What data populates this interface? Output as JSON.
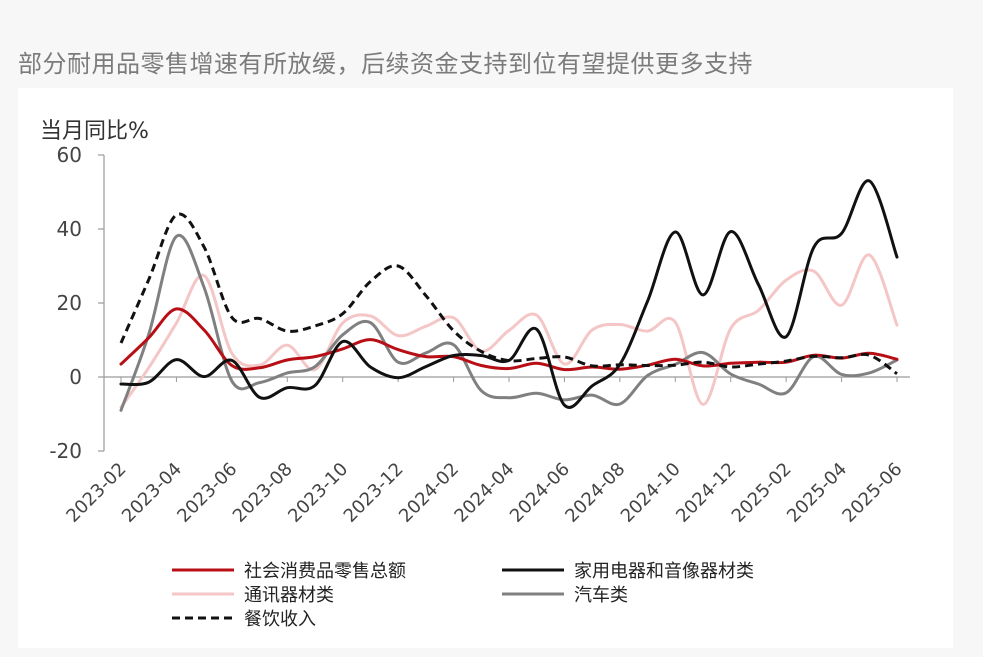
{
  "header": {
    "title": "部分耐用品零售增速有所放缓，后续资金支持到位有望提供更多支持"
  },
  "chart_data": {
    "type": "line",
    "title": "部分耐用品零售增速有所放缓，后续资金支持到位有望提供更多支持",
    "ylabel": "当月同比%",
    "xlabel": "",
    "ylim": [
      -20,
      60
    ],
    "yticks": [
      -20,
      0,
      20,
      40,
      60
    ],
    "x": [
      "2023-02",
      "2023-03",
      "2023-04",
      "2023-05",
      "2023-06",
      "2023-07",
      "2023-08",
      "2023-09",
      "2023-10",
      "2023-11",
      "2023-12",
      "2024-01",
      "2024-02",
      "2024-03",
      "2024-04",
      "2024-05",
      "2024-06",
      "2024-07",
      "2024-08",
      "2024-09",
      "2024-10",
      "2024-11",
      "2024-12",
      "2025-01",
      "2025-02",
      "2025-03",
      "2025-04",
      "2025-05",
      "2025-06"
    ],
    "xticks": [
      "2023-02",
      "2023-04",
      "2023-06",
      "2023-08",
      "2023-10",
      "2023-12",
      "2024-02",
      "2024-04",
      "2024-06",
      "2024-08",
      "2024-10",
      "2024-12",
      "2025-02",
      "2025-04",
      "2025-06"
    ],
    "legend_position": "bottom",
    "grid": false,
    "series": [
      {
        "name": "社会消费品零售总额",
        "color": "#b80f16",
        "dash": "solid",
        "width": 3,
        "values": [
          3.5,
          10.6,
          18.4,
          12.7,
          3.1,
          2.5,
          4.6,
          5.5,
          7.6,
          10.1,
          7.4,
          5.5,
          5.5,
          3.1,
          2.3,
          3.7,
          2.0,
          2.7,
          2.1,
          3.2,
          4.8,
          3.0,
          3.7,
          4.0,
          4.0,
          5.9,
          5.1,
          6.4,
          4.8
        ]
      },
      {
        "name": "家用电器和音像器材类",
        "color": "#111111",
        "dash": "solid",
        "width": 3,
        "values": [
          -1.9,
          -1.4,
          4.7,
          0.1,
          4.5,
          -5.5,
          -2.9,
          -2.3,
          9.6,
          2.7,
          -0.2,
          2.8,
          5.8,
          5.8,
          4.5,
          12.9,
          -7.6,
          -2.4,
          3.4,
          20.5,
          39.2,
          22.2,
          39.3,
          25.0,
          10.9,
          35.1,
          38.8,
          53.0,
          32.4
        ]
      },
      {
        "name": "通讯器材类",
        "color": "#f4c6c6",
        "dash": "solid",
        "width": 3,
        "values": [
          -8.2,
          2.5,
          14.6,
          27.4,
          6.4,
          3.2,
          8.6,
          2.0,
          14.6,
          16.5,
          11.2,
          13.7,
          16.0,
          7.0,
          12.6,
          16.7,
          3.5,
          12.7,
          14.2,
          12.4,
          14.8,
          -7.4,
          13.1,
          18.0,
          26.2,
          28.6,
          19.4,
          33.0,
          14.0
        ]
      },
      {
        "name": "汽车类",
        "color": "#808080",
        "dash": "solid",
        "width": 3,
        "values": [
          -9.0,
          11.5,
          38.0,
          24.2,
          -1.1,
          -1.5,
          1.1,
          2.8,
          11.4,
          14.7,
          4.0,
          6.5,
          8.7,
          -3.7,
          -5.6,
          -4.4,
          -6.2,
          -4.9,
          -7.3,
          0.4,
          3.4,
          6.6,
          0.8,
          -1.9,
          -4.3,
          5.5,
          0.7,
          1.1,
          4.6
        ]
      },
      {
        "name": "餐饮收入",
        "color": "#111111",
        "dash": "dashed",
        "width": 3,
        "values": [
          9.2,
          26.3,
          43.8,
          35.1,
          16.1,
          15.8,
          12.4,
          13.8,
          17.1,
          25.8,
          30.0,
          22.0,
          12.5,
          6.9,
          4.4,
          5.0,
          5.4,
          3.0,
          3.3,
          3.1,
          3.2,
          4.0,
          2.7,
          3.5,
          4.3,
          5.6,
          5.2,
          5.9,
          0.9
        ]
      }
    ]
  }
}
